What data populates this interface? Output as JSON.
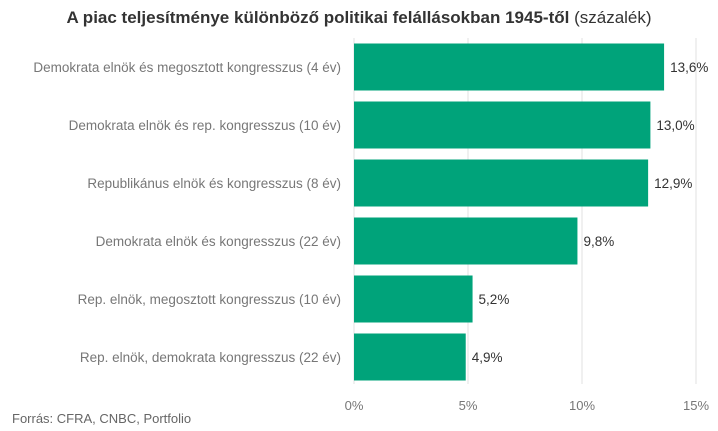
{
  "chart_data": {
    "type": "bar",
    "orientation": "horizontal",
    "title": "A piac teljesítménye különböző politikai felállásokban 1945-től",
    "title_unit": "(százalék)",
    "categories": [
      "Demokrata elnök és megosztott kongresszus (4 év)",
      "Demokrata elnök és rep. kongresszus (10 év)",
      "Republikánus elnök és kongresszus (8 év)",
      "Demokrata elnök és kongresszus (22 év)",
      "Rep. elnök, megosztott kongresszus (10 év)",
      "Rep. elnök, demokrata kongresszus (22 év)"
    ],
    "values": [
      13.6,
      13.0,
      12.9,
      9.8,
      5.2,
      4.9
    ],
    "value_labels": [
      "13,6%",
      "13,0%",
      "12,9%",
      "9,8%",
      "5,2%",
      "4,9%"
    ],
    "xlim": [
      0,
      15
    ],
    "xticks": [
      0,
      5,
      10,
      15
    ],
    "xtick_labels": [
      "0%",
      "5%",
      "10%",
      "15%"
    ],
    "grid": true,
    "bar_color": "#00a37a",
    "grid_color": "#e0e0e0",
    "label_color": "#777777",
    "value_label_color": "#333333",
    "source": "Forrás: CFRA, CNBC, Portfolio"
  }
}
